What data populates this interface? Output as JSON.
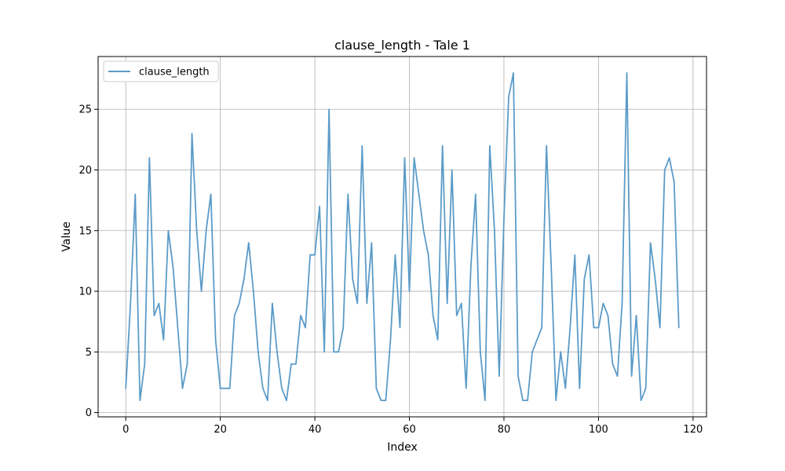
{
  "chart_data": {
    "type": "line",
    "title": "clause_length - Tale 1",
    "xlabel": "Index",
    "ylabel": "Value",
    "xlim": [
      -5.85,
      122.85
    ],
    "ylim": [
      -0.35,
      29.35
    ],
    "xticks": [
      0,
      20,
      40,
      60,
      80,
      100,
      120
    ],
    "yticks": [
      0,
      5,
      10,
      15,
      20,
      25
    ],
    "grid": true,
    "legend_position": "upper-left",
    "series": [
      {
        "name": "clause_length",
        "color": "#5b9bc8",
        "x": [
          0,
          1,
          2,
          3,
          4,
          5,
          6,
          7,
          8,
          9,
          10,
          11,
          12,
          13,
          14,
          15,
          16,
          17,
          18,
          19,
          20,
          21,
          22,
          23,
          24,
          25,
          26,
          27,
          28,
          29,
          30,
          31,
          32,
          33,
          34,
          35,
          36,
          37,
          38,
          39,
          40,
          41,
          42,
          43,
          44,
          45,
          46,
          47,
          48,
          49,
          50,
          51,
          52,
          53,
          54,
          55,
          56,
          57,
          58,
          59,
          60,
          61,
          62,
          63,
          64,
          65,
          66,
          67,
          68,
          69,
          70,
          71,
          72,
          73,
          74,
          75,
          76,
          77,
          78,
          79,
          80,
          81,
          82,
          83,
          84,
          85,
          86,
          87,
          88,
          89,
          90,
          91,
          92,
          93,
          94,
          95,
          96,
          97,
          98,
          99,
          100,
          101,
          102,
          103,
          104,
          105,
          106,
          107,
          108,
          109,
          110,
          111,
          112,
          113,
          114,
          115,
          116,
          117
        ],
        "values": [
          2,
          9,
          18,
          1,
          4,
          21,
          8,
          9,
          6,
          15,
          12,
          7,
          2,
          4,
          23,
          15,
          10,
          15,
          18,
          6,
          2,
          2,
          2,
          8,
          9,
          11,
          14,
          10,
          5,
          2,
          1,
          9,
          5,
          2,
          1,
          4,
          4,
          8,
          7,
          13,
          13,
          17,
          5,
          25,
          5,
          5,
          7,
          18,
          11,
          9,
          22,
          9,
          14,
          2,
          1,
          1,
          6,
          13,
          7,
          21,
          10,
          21,
          18,
          15,
          13,
          8,
          6,
          22,
          9,
          20,
          8,
          9,
          2,
          12,
          18,
          5,
          1,
          22,
          15,
          3,
          16,
          26,
          28,
          3,
          1,
          1,
          5,
          6,
          7,
          22,
          12,
          1,
          5,
          2,
          7,
          13,
          2,
          11,
          13,
          7,
          7,
          9,
          8,
          4,
          3,
          9,
          28,
          3,
          8,
          1,
          2,
          14,
          11,
          7,
          20,
          21,
          19,
          7
        ]
      }
    ]
  }
}
